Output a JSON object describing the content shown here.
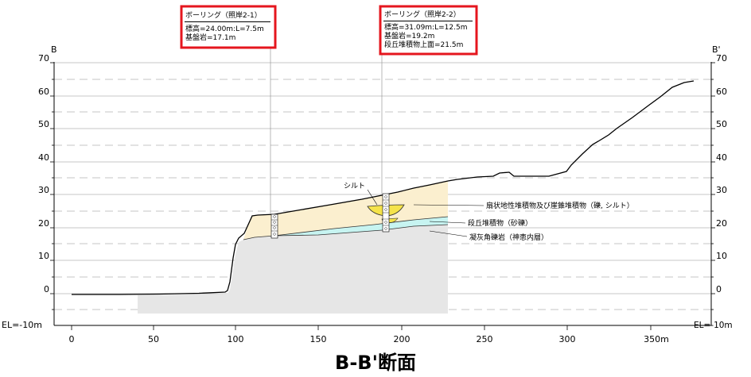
{
  "title": "B-B'断面",
  "section_ends": {
    "left": "B",
    "right": "B'"
  },
  "y_axis": {
    "ticks": [
      "70",
      "60",
      "50",
      "40",
      "30",
      "20",
      "10",
      "0"
    ],
    "bottom_label": "EL=-10m"
  },
  "x_axis": {
    "ticks": [
      "0",
      "50",
      "100",
      "150",
      "200",
      "250",
      "300",
      "350m"
    ]
  },
  "boreholes": [
    {
      "title": "ボーリング（照岸2-1）",
      "line1": "標高=24.00m:L=7.5m",
      "line2": "基盤岩=17.1m",
      "line3": ""
    },
    {
      "title": "ボーリング（照岸2-2）",
      "line1": "標高=31.09m:L=12.5m",
      "line2": "基盤岩=19.2m",
      "line3": "段丘堆積物上面=21.5m"
    }
  ],
  "labels": {
    "silt": "シルト",
    "fan_deposit": "扇状地性堆積物及び崖錐堆積物（礫, シルト）",
    "terrace_deposit": "段丘堆積物（砂礫）",
    "tuff_breccia": "凝灰角礫岩（神恵内層）"
  },
  "colors": {
    "fan_deposit": "#fbefcf",
    "terrace_deposit": "#c7f4f1",
    "bedrock": "#e6e6e6",
    "silt": "#f5e34a",
    "callout_border": "#e5161e"
  }
}
